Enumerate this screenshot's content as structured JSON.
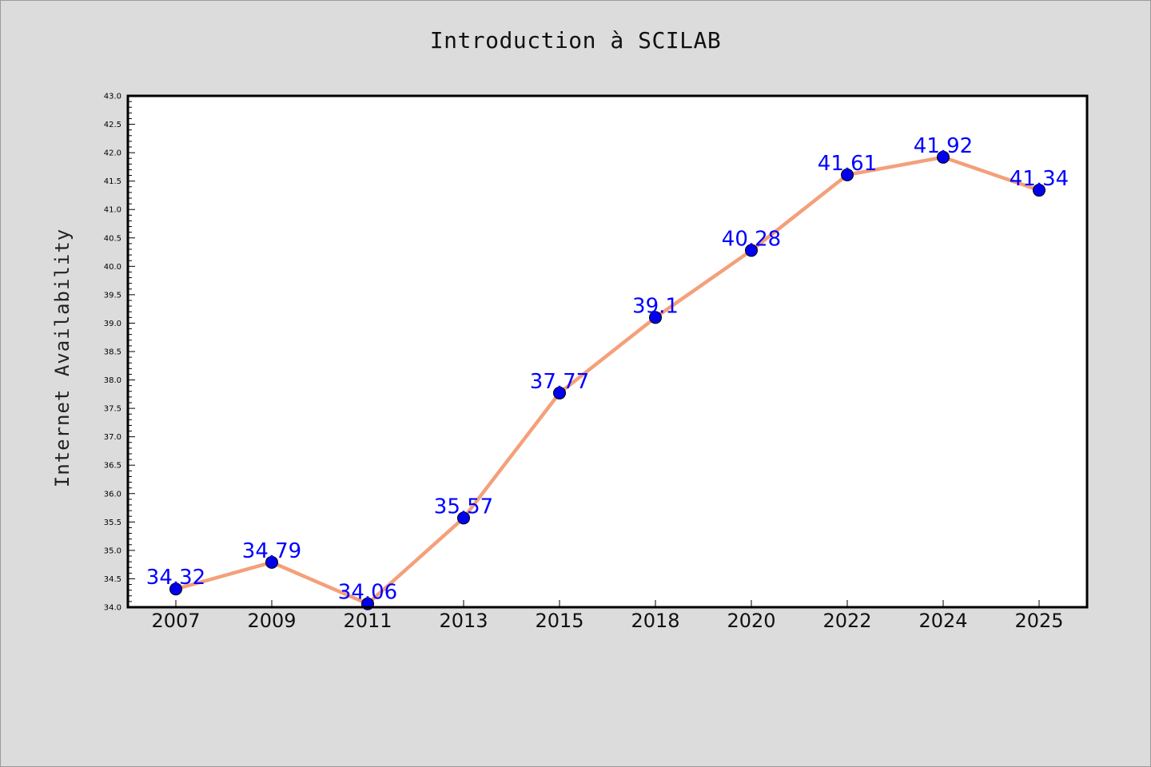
{
  "chart_data": {
    "type": "line",
    "title": "Introduction à SCILAB",
    "xlabel": "",
    "ylabel": "Internet Availability",
    "categories": [
      "2007",
      "2009",
      "2011",
      "2013",
      "2015",
      "2018",
      "2020",
      "2022",
      "2024",
      "2025"
    ],
    "series": [
      {
        "values": [
          34.32,
          34.79,
          34.06,
          35.57,
          37.77,
          39.1,
          40.28,
          41.61,
          41.92,
          41.34
        ],
        "labels": [
          "34.32",
          "34.79",
          "34.06",
          "35.57",
          "37.77",
          "39.1",
          "40.28",
          "41.61",
          "41.92",
          "41.34"
        ],
        "line_color": "#f4a07a",
        "marker_color": "#0000ee"
      }
    ],
    "ylim": [
      34.0,
      43.0
    ],
    "yticks": [
      "34.0",
      "34.5",
      "35.0",
      "35.5",
      "36.0",
      "36.5",
      "37.0",
      "37.5",
      "38.0",
      "38.5",
      "39.0",
      "39.5",
      "40.0",
      "40.5",
      "41.0",
      "41.5",
      "42.0",
      "42.5",
      "43.0"
    ],
    "grid": false,
    "legend": "none",
    "colors": {
      "background": "#dcdcdc",
      "plot_background": "#ffffff",
      "label_color": "#0000ff"
    }
  }
}
